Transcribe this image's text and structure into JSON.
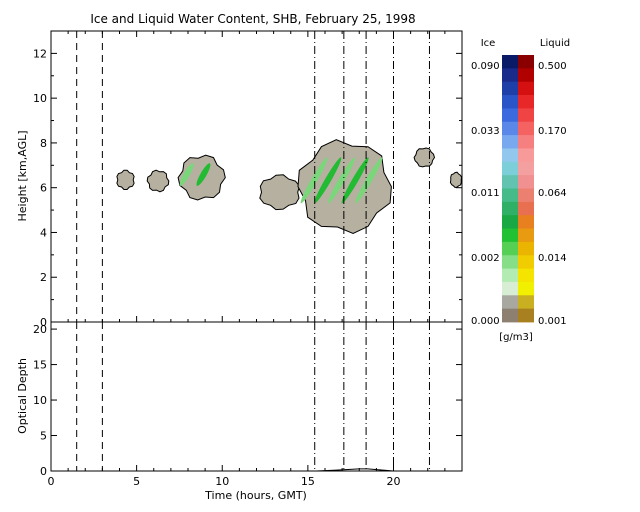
{
  "chart_data": [
    {
      "type": "heatmap",
      "title": "Ice and Liquid Water Content, SHB, February 25, 1998",
      "xlabel": "",
      "ylabel": "Height [km,AGL]",
      "xlim": [
        0,
        24
      ],
      "ylim": [
        0,
        13
      ],
      "xticks": [],
      "yticks": [
        "0",
        "2",
        "4",
        "6",
        "8",
        "10",
        "12"
      ],
      "grid": false,
      "dashed_time_markers": [
        1.5,
        3.0,
        15.4,
        17.1,
        18.4,
        20.0,
        22.1
      ],
      "cloud_regions": [
        {
          "x": [
            3.8,
            4.9
          ],
          "y": [
            5.9,
            6.8
          ],
          "liquid": false
        },
        {
          "x": [
            5.6,
            6.9
          ],
          "y": [
            5.8,
            6.8
          ],
          "liquid": false
        },
        {
          "x": [
            7.4,
            10.2
          ],
          "y": [
            5.4,
            7.5
          ],
          "liquid": true
        },
        {
          "x": [
            12.1,
            14.6
          ],
          "y": [
            5.0,
            6.6
          ],
          "liquid": false
        },
        {
          "x": [
            14.3,
            20.0
          ],
          "y": [
            3.9,
            8.2
          ],
          "liquid": true
        },
        {
          "x": [
            21.2,
            22.4
          ],
          "y": [
            6.9,
            7.8
          ],
          "liquid": false
        },
        {
          "x": [
            23.3,
            24.0
          ],
          "y": [
            6.0,
            6.7
          ],
          "liquid": false
        }
      ]
    },
    {
      "type": "line",
      "title": "",
      "xlabel": "Time (hours, GMT)",
      "ylabel": "Optical Depth",
      "xlim": [
        0,
        24
      ],
      "ylim": [
        0,
        21
      ],
      "xticks": [
        "0",
        "5",
        "10",
        "15",
        "20"
      ],
      "yticks": [
        "0",
        "5",
        "10",
        "15",
        "20"
      ],
      "grid": false,
      "dashed_time_markers": [
        1.5,
        3.0,
        15.4,
        17.1,
        18.4,
        20.0,
        22.1
      ],
      "x": [
        0,
        14,
        15.5,
        16.5,
        17.2,
        18,
        18.5,
        19,
        19.5,
        20,
        24
      ],
      "values": [
        0,
        0,
        0,
        0.1,
        0.2,
        0.3,
        0.3,
        0.2,
        0.1,
        0,
        0
      ]
    }
  ],
  "colorbar": {
    "ice_header": "Ice",
    "liquid_header": "Liquid",
    "ice_labels": [
      "0.090",
      "0.033",
      "0.011",
      "0.002",
      "0.000"
    ],
    "liquid_labels": [
      "0.500",
      "0.170",
      "0.064",
      "0.014",
      "0.001"
    ],
    "units": "[g/m3]",
    "ice_colors": [
      "#0a1a66",
      "#1a2a8a",
      "#1f3fa8",
      "#2a55c8",
      "#3a6ade",
      "#5a88e8",
      "#78a8ee",
      "#92c8ee",
      "#7ccfd8",
      "#62c4b0",
      "#44bb88",
      "#2fb066",
      "#1aa844",
      "#22c033",
      "#55d055",
      "#86de86",
      "#b2ecb2",
      "#d8eed4",
      "#a8a8a0",
      "#8e8070"
    ],
    "liquid_colors": [
      "#8a0000",
      "#b00000",
      "#d41010",
      "#e82828",
      "#f04444",
      "#f46262",
      "#f68080",
      "#f89a9a",
      "#f4a0a0",
      "#f09090",
      "#ec8070",
      "#e87050",
      "#e88020",
      "#e89a10",
      "#eab400",
      "#f0cc00",
      "#f4e400",
      "#f0f000",
      "#c8b020",
      "#a88020"
    ]
  }
}
